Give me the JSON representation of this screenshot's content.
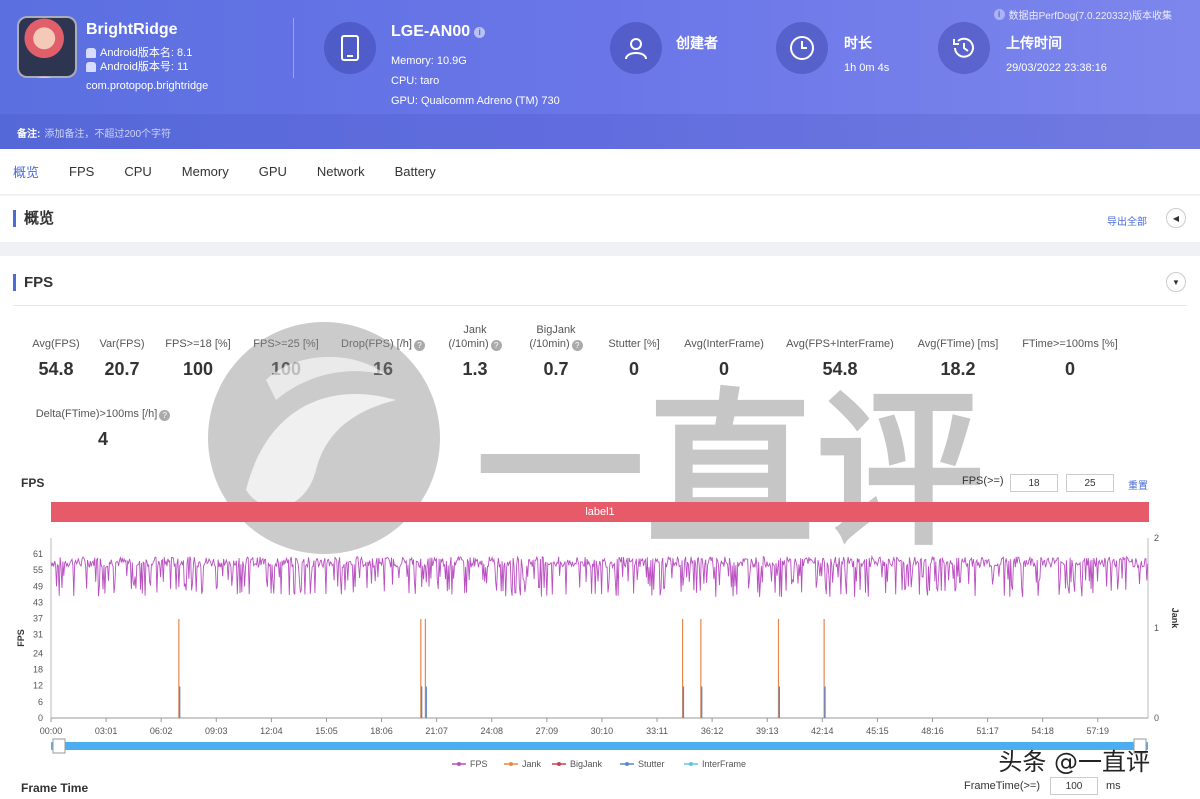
{
  "app": {
    "name": "BrightRidge",
    "android_version_name": "Android版本名: 8.1",
    "android_version_code": "Android版本号: 11",
    "package": "com.protopop.brightridge"
  },
  "device": {
    "name": "LGE-AN00",
    "memory": "Memory: 10.9G",
    "cpu": "CPU: taro",
    "gpu": "GPU: Qualcomm Adreno (TM) 730"
  },
  "creator": {
    "title": "创建者"
  },
  "duration": {
    "title": "时长",
    "value": "1h 0m 4s"
  },
  "upload": {
    "title": "上传时间",
    "value": "29/03/2022 23:38:16"
  },
  "collected_by": "数据由PerfDog(7.0.220332)版本收集",
  "note": {
    "label": "备注:",
    "placeholder": "添加备注，不超过200个字符"
  },
  "tabs": [
    "概览",
    "FPS",
    "CPU",
    "Memory",
    "GPU",
    "Network",
    "Battery"
  ],
  "overview": {
    "title": "概览",
    "export": "导出全部"
  },
  "fps_section": {
    "title": "FPS",
    "metrics": [
      {
        "label": "Avg(FPS)",
        "value": "54.8"
      },
      {
        "label": "Var(FPS)",
        "value": "20.7"
      },
      {
        "label": "FPS>=18 [%]",
        "value": "100"
      },
      {
        "label": "FPS>=25 [%]",
        "value": "100"
      },
      {
        "label": "Drop(FPS) [/h]",
        "value": "16"
      },
      {
        "label": "Jank",
        "label2": "(/10min)",
        "value": "1.3"
      },
      {
        "label": "BigJank",
        "label2": "(/10min)",
        "value": "0.7"
      },
      {
        "label": "Stutter [%]",
        "value": "0"
      },
      {
        "label": "Avg(InterFrame)",
        "value": "0"
      },
      {
        "label": "Avg(FPS+InterFrame)",
        "value": "54.8"
      },
      {
        "label": "Avg(FTime) [ms]",
        "value": "18.2"
      },
      {
        "label": "FTime>=100ms [%]",
        "value": "0"
      },
      {
        "label": "Delta(FTime)>100ms [/h]",
        "value": "4"
      }
    ]
  },
  "fps_chart": {
    "title": "FPS",
    "threshold_label": "FPS(>=)",
    "threshold_low": "18",
    "threshold_high": "25",
    "reset": "重置",
    "label_bar": "label1"
  },
  "chart_data": {
    "type": "line",
    "ylabel": "FPS",
    "y2label": "Jank",
    "y_ticks": [
      "0",
      "6",
      "12",
      "18",
      "24",
      "31",
      "37",
      "43",
      "49",
      "55",
      "61"
    ],
    "y2_ticks": [
      "0",
      "1",
      "2"
    ],
    "x_ticks": [
      "00:00",
      "03:01",
      "06:02",
      "09:03",
      "12:04",
      "15:05",
      "18:06",
      "21:07",
      "24:08",
      "27:09",
      "30:10",
      "33:11",
      "36:12",
      "39:13",
      "42:14",
      "45:15",
      "48:16",
      "51:17",
      "54:18",
      "57:19"
    ],
    "ylim": [
      0,
      61
    ],
    "y2lim": [
      0,
      2
    ],
    "fps_range": [
      43,
      61
    ],
    "jank_events_sec": [
      420,
      1215,
      1230,
      2075,
      2135,
      2390,
      2540
    ],
    "stutter_events_sec": [
      420,
      1215,
      1230,
      2075,
      2135,
      2390,
      2540
    ],
    "series": [
      {
        "name": "FPS",
        "color": "#b94fc1"
      },
      {
        "name": "Jank",
        "color": "#e8874a"
      },
      {
        "name": "BigJank",
        "color": "#c2425a"
      },
      {
        "name": "Stutter",
        "color": "#5b88c9"
      },
      {
        "name": "InterFrame",
        "color": "#5bc7e0"
      }
    ]
  },
  "frame_time": {
    "title": "Frame Time",
    "label": "FrameTime(>=)",
    "value": "100",
    "unit": "ms"
  },
  "watermark": {
    "text": "一直评",
    "brand": "头条 @一直评"
  }
}
